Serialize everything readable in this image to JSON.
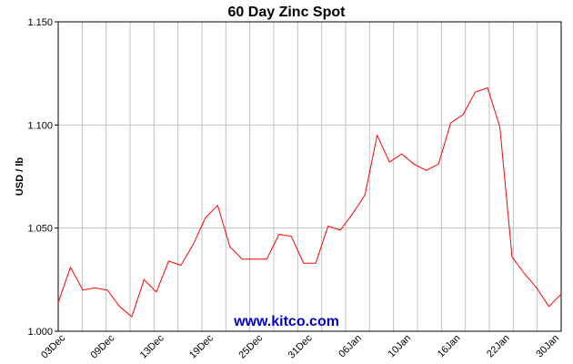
{
  "chart_data": {
    "type": "line",
    "title": "60 Day Zinc Spot",
    "ylabel": "USD / lb",
    "xlabel": "",
    "ylim": [
      1.0,
      1.15
    ],
    "yticks": [
      "1.000",
      "1.050",
      "1.100",
      "1.150"
    ],
    "grid": true,
    "line_color": "#ff0000",
    "xtick_labels": [
      "03Dec",
      "09Dec",
      "13Dec",
      "19Dec",
      "25Dec",
      "31Dec",
      "06Jan",
      "10Jan",
      "16Jan",
      "22Jan",
      "30Jan"
    ],
    "watermark": "www.kitco.com",
    "series": [
      {
        "values": [
          1.014,
          1.031,
          1.02,
          1.021,
          1.02,
          1.012,
          1.007,
          1.025,
          1.019,
          1.034,
          1.032,
          1.042,
          1.055,
          1.061,
          1.041,
          1.035,
          1.035,
          1.035,
          1.047,
          1.046,
          1.033,
          1.033,
          1.051,
          1.049,
          1.057,
          1.066,
          1.095,
          1.082,
          1.086,
          1.081,
          1.078,
          1.081,
          1.101,
          1.105,
          1.116,
          1.118,
          1.099,
          1.036,
          1.028,
          1.021,
          1.012,
          1.018
        ]
      }
    ]
  }
}
